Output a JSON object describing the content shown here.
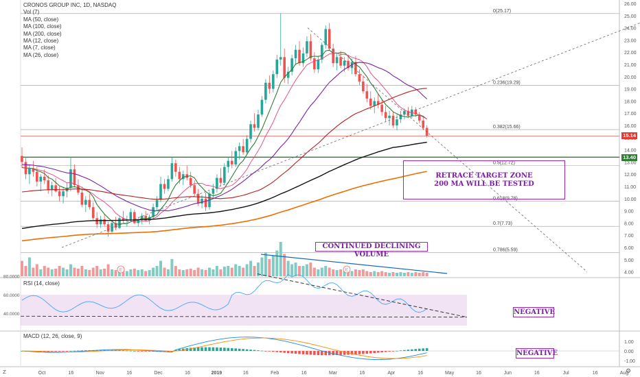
{
  "header": {
    "symbol_line": "CRONOS GROUP INC, 1D, NASDAQ",
    "indicators": [
      "Vol (7)",
      "MA (50, close)",
      "MA (100, close)",
      "MA (200, close)",
      "MA (12, close)",
      "MA (7, close)",
      "MA (26, close)"
    ]
  },
  "panes": {
    "rsi_label": "RSI (14, close)",
    "macd_label": "MACD (12, 26, close, 9)"
  },
  "price_tags": {
    "last": "15.14",
    "support": "13.40"
  },
  "annotations": {
    "retrace_line1": "RETRACE TARGET ZONE",
    "retrace_line2": "200 MA WILL BE TESTED",
    "volume_note": "CONTINUED DECLINING VOLUME",
    "rsi_note": "NEGATIVE",
    "macd_note": "NEGATIVE"
  },
  "icons": {
    "bottom_left": "Z",
    "bottom_right": "gear-icon"
  },
  "colors": {
    "up": "#26a69a",
    "down": "#ef5350",
    "ma50": "#b71c1c",
    "ma100": "#8e24aa",
    "ma200": "#111111",
    "ma12": "#7b1fa2",
    "ma7": "#2e7d32",
    "ma26": "#ec407a",
    "ma_orange": "#ef6c00",
    "support": "#2e7d32",
    "last": "#e53935",
    "annotation": "#9c27b0"
  },
  "chart_data": {
    "type": "candlestick",
    "title": "CRONOS GROUP INC, 1D, NASDAQ",
    "price_axis": {
      "ticks": [
        "26.00",
        "25.00",
        "24.00",
        "23.00",
        "22.00",
        "21.00",
        "20.00",
        "19.00",
        "18.00",
        "17.00",
        "16.00",
        "15.00",
        "14.00",
        "13.00",
        "12.00",
        "11.00",
        "10.00",
        "9.00",
        "8.00",
        "7.00",
        "6.00",
        "5.00",
        "4.00"
      ],
      "range": [
        4,
        26
      ]
    },
    "time_axis": [
      "Oct",
      "16",
      "Nov",
      "16",
      "Dec",
      "16",
      "2019",
      "16",
      "Feb",
      "16",
      "Mar",
      "16",
      "Apr",
      "16",
      "May",
      "16",
      "Jun",
      "16",
      "Jul",
      "16",
      "Aug",
      "16"
    ],
    "fibonacci": [
      {
        "label": "0(25.17)",
        "value": 25.17
      },
      {
        "label": "0.236(19.29)",
        "value": 19.29
      },
      {
        "label": "0.382(15.66)",
        "value": 15.66
      },
      {
        "label": "0.5(12.72)",
        "value": 12.72
      },
      {
        "label": "0.618(9.78)",
        "value": 9.78
      },
      {
        "label": "0.7(7.73)",
        "value": 7.73
      },
      {
        "label": "0.786(5.59)",
        "value": 5.59
      }
    ],
    "candles": [
      [
        13.5,
        14.2,
        12.5,
        13.0
      ],
      [
        13.0,
        13.4,
        11.6,
        12.0
      ],
      [
        12.0,
        12.8,
        11.2,
        12.5
      ],
      [
        12.5,
        13.1,
        11.8,
        12.2
      ],
      [
        12.2,
        12.6,
        11.0,
        11.4
      ],
      [
        11.4,
        12.0,
        10.6,
        11.8
      ],
      [
        11.8,
        12.4,
        11.2,
        11.5
      ],
      [
        11.5,
        11.9,
        10.4,
        10.7
      ],
      [
        10.7,
        11.4,
        10.2,
        11.1
      ],
      [
        11.1,
        11.7,
        10.5,
        10.6
      ],
      [
        10.6,
        11.0,
        9.8,
        10.2
      ],
      [
        10.2,
        10.9,
        9.6,
        10.6
      ],
      [
        10.6,
        11.3,
        10.1,
        10.9
      ],
      [
        10.9,
        13.4,
        10.6,
        12.4
      ],
      [
        12.4,
        12.8,
        10.9,
        11.1
      ],
      [
        11.1,
        11.6,
        10.3,
        10.5
      ],
      [
        10.5,
        11.0,
        9.3,
        9.5
      ],
      [
        9.5,
        10.2,
        8.9,
        9.9
      ],
      [
        9.9,
        10.4,
        9.1,
        9.3
      ],
      [
        9.3,
        9.7,
        8.2,
        8.4
      ],
      [
        8.4,
        8.9,
        7.6,
        7.9
      ],
      [
        7.9,
        8.6,
        7.6,
        8.3
      ],
      [
        8.3,
        8.7,
        7.7,
        7.9
      ],
      [
        7.9,
        8.1,
        6.9,
        7.3
      ],
      [
        7.3,
        8.2,
        7.1,
        8.0
      ],
      [
        8.0,
        8.5,
        7.4,
        7.6
      ],
      [
        7.6,
        8.6,
        7.5,
        8.4
      ],
      [
        8.4,
        9.0,
        8.0,
        8.2
      ],
      [
        8.2,
        8.6,
        7.7,
        8.3
      ],
      [
        8.3,
        9.2,
        8.1,
        8.9
      ],
      [
        8.9,
        9.1,
        7.9,
        8.0
      ],
      [
        8.0,
        8.5,
        7.7,
        8.3
      ],
      [
        8.3,
        8.8,
        7.9,
        8.6
      ],
      [
        8.6,
        9.0,
        8.1,
        8.2
      ],
      [
        8.2,
        8.7,
        7.9,
        8.5
      ],
      [
        8.5,
        9.6,
        8.3,
        9.3
      ],
      [
        9.3,
        10.2,
        9.0,
        9.9
      ],
      [
        9.9,
        11.8,
        9.7,
        11.2
      ],
      [
        11.2,
        11.6,
        10.4,
        10.8
      ],
      [
        10.8,
        11.9,
        10.6,
        11.6
      ],
      [
        11.6,
        13.4,
        11.4,
        12.9
      ],
      [
        12.9,
        13.2,
        11.8,
        12.2
      ],
      [
        12.2,
        12.6,
        11.2,
        11.6
      ],
      [
        11.6,
        12.3,
        11.1,
        12.0
      ],
      [
        12.0,
        12.7,
        11.5,
        11.7
      ],
      [
        11.7,
        12.2,
        10.9,
        11.1
      ],
      [
        11.1,
        11.5,
        10.2,
        10.4
      ],
      [
        10.4,
        10.8,
        9.4,
        9.6
      ],
      [
        9.6,
        10.3,
        9.2,
        10.0
      ],
      [
        10.0,
        10.5,
        9.0,
        9.3
      ],
      [
        9.3,
        10.6,
        9.1,
        10.4
      ],
      [
        10.4,
        11.2,
        10.0,
        10.8
      ],
      [
        10.8,
        12.0,
        10.5,
        11.7
      ],
      [
        11.7,
        12.5,
        11.0,
        11.3
      ],
      [
        11.3,
        12.9,
        11.1,
        12.6
      ],
      [
        12.6,
        13.4,
        12.1,
        13.1
      ],
      [
        13.1,
        13.9,
        12.5,
        12.8
      ],
      [
        12.8,
        14.2,
        12.6,
        13.9
      ],
      [
        13.9,
        14.6,
        13.2,
        14.3
      ],
      [
        14.3,
        14.9,
        13.6,
        13.8
      ],
      [
        13.8,
        15.2,
        13.6,
        14.9
      ],
      [
        14.9,
        16.4,
        14.6,
        16.1
      ],
      [
        16.1,
        17.0,
        15.5,
        15.8
      ],
      [
        15.8,
        17.3,
        15.6,
        16.9
      ],
      [
        16.9,
        18.4,
        16.7,
        18.1
      ],
      [
        18.1,
        19.8,
        17.8,
        19.5
      ],
      [
        19.5,
        20.1,
        18.6,
        19.0
      ],
      [
        19.0,
        20.5,
        18.7,
        20.2
      ],
      [
        20.2,
        21.8,
        19.9,
        21.4
      ],
      [
        21.4,
        25.2,
        20.9,
        21.6
      ],
      [
        21.6,
        22.3,
        19.5,
        19.9
      ],
      [
        19.9,
        20.8,
        19.4,
        20.4
      ],
      [
        20.4,
        21.8,
        20.1,
        21.5
      ],
      [
        21.5,
        22.6,
        21.0,
        22.2
      ],
      [
        22.2,
        22.9,
        20.9,
        21.1
      ],
      [
        21.1,
        22.4,
        20.8,
        21.9
      ],
      [
        21.9,
        23.3,
        21.6,
        22.9
      ],
      [
        22.9,
        23.5,
        21.3,
        21.5
      ],
      [
        21.5,
        22.0,
        20.3,
        20.6
      ],
      [
        20.6,
        21.7,
        20.3,
        21.4
      ],
      [
        21.4,
        22.8,
        21.1,
        22.6
      ],
      [
        22.6,
        24.2,
        22.3,
        23.9
      ],
      [
        23.9,
        24.4,
        22.1,
        22.3
      ],
      [
        22.3,
        22.7,
        20.8,
        21.1
      ],
      [
        21.1,
        21.9,
        20.5,
        21.6
      ],
      [
        21.6,
        22.1,
        20.7,
        20.9
      ],
      [
        20.9,
        21.6,
        20.4,
        21.3
      ],
      [
        21.3,
        21.8,
        20.5,
        20.7
      ],
      [
        20.7,
        21.5,
        20.2,
        21.2
      ],
      [
        21.2,
        21.7,
        20.0,
        20.2
      ],
      [
        20.2,
        20.6,
        19.3,
        19.6
      ],
      [
        19.6,
        20.1,
        18.6,
        18.8
      ],
      [
        18.8,
        19.4,
        17.9,
        18.2
      ],
      [
        18.2,
        18.8,
        17.3,
        17.6
      ],
      [
        17.6,
        18.3,
        17.0,
        18.0
      ],
      [
        18.0,
        18.6,
        17.4,
        17.7
      ],
      [
        17.7,
        18.1,
        16.8,
        17.1
      ],
      [
        17.1,
        17.6,
        16.3,
        16.6
      ],
      [
        16.6,
        17.2,
        16.0,
        16.8
      ],
      [
        16.8,
        17.1,
        15.8,
        16.0
      ],
      [
        16.0,
        16.9,
        15.6,
        16.5
      ],
      [
        16.5,
        17.2,
        16.2,
        16.9
      ],
      [
        16.9,
        17.4,
        16.5,
        17.2
      ],
      [
        17.2,
        17.5,
        16.6,
        16.8
      ],
      [
        16.8,
        17.6,
        16.6,
        17.3
      ],
      [
        17.3,
        17.5,
        16.7,
        16.9
      ],
      [
        16.9,
        17.1,
        16.2,
        16.4
      ],
      [
        16.4,
        16.7,
        15.6,
        15.8
      ],
      [
        15.8,
        16.0,
        15.0,
        15.14
      ]
    ],
    "volume_relative": [
      0.45,
      0.3,
      0.55,
      0.25,
      0.35,
      0.2,
      0.3,
      0.25,
      0.2,
      0.22,
      0.3,
      0.25,
      0.2,
      0.35,
      0.25,
      0.22,
      0.3,
      0.2,
      0.18,
      0.25,
      0.3,
      0.2,
      0.22,
      0.35,
      0.2,
      0.18,
      0.25,
      0.2,
      0.15,
      0.2,
      0.22,
      0.18,
      0.2,
      0.15,
      0.18,
      0.25,
      0.3,
      0.45,
      0.25,
      0.2,
      0.5,
      0.3,
      0.2,
      0.18,
      0.2,
      0.22,
      0.18,
      0.25,
      0.2,
      0.18,
      0.25,
      0.2,
      0.3,
      0.2,
      0.28,
      0.3,
      0.25,
      0.35,
      0.3,
      0.25,
      0.35,
      0.45,
      0.3,
      0.4,
      0.55,
      0.7,
      0.5,
      0.6,
      0.75,
      1.0,
      0.65,
      0.45,
      0.35,
      0.4,
      0.3,
      0.3,
      0.35,
      0.4,
      0.25,
      0.2,
      0.25,
      0.3,
      0.25,
      0.2,
      0.18,
      0.2,
      0.15,
      0.18,
      0.15,
      0.2,
      0.18,
      0.2,
      0.15,
      0.12,
      0.15,
      0.12,
      0.15,
      0.12,
      0.1,
      0.12,
      0.1,
      0.12,
      0.1,
      0.12,
      0.1,
      0.12,
      0.1,
      0.12,
      0.1
    ],
    "rsi_axis": [
      "80.0000",
      "60.0000",
      "40.0000"
    ],
    "macd_axis": [
      "1.00",
      "0.00",
      "-1.00"
    ]
  }
}
